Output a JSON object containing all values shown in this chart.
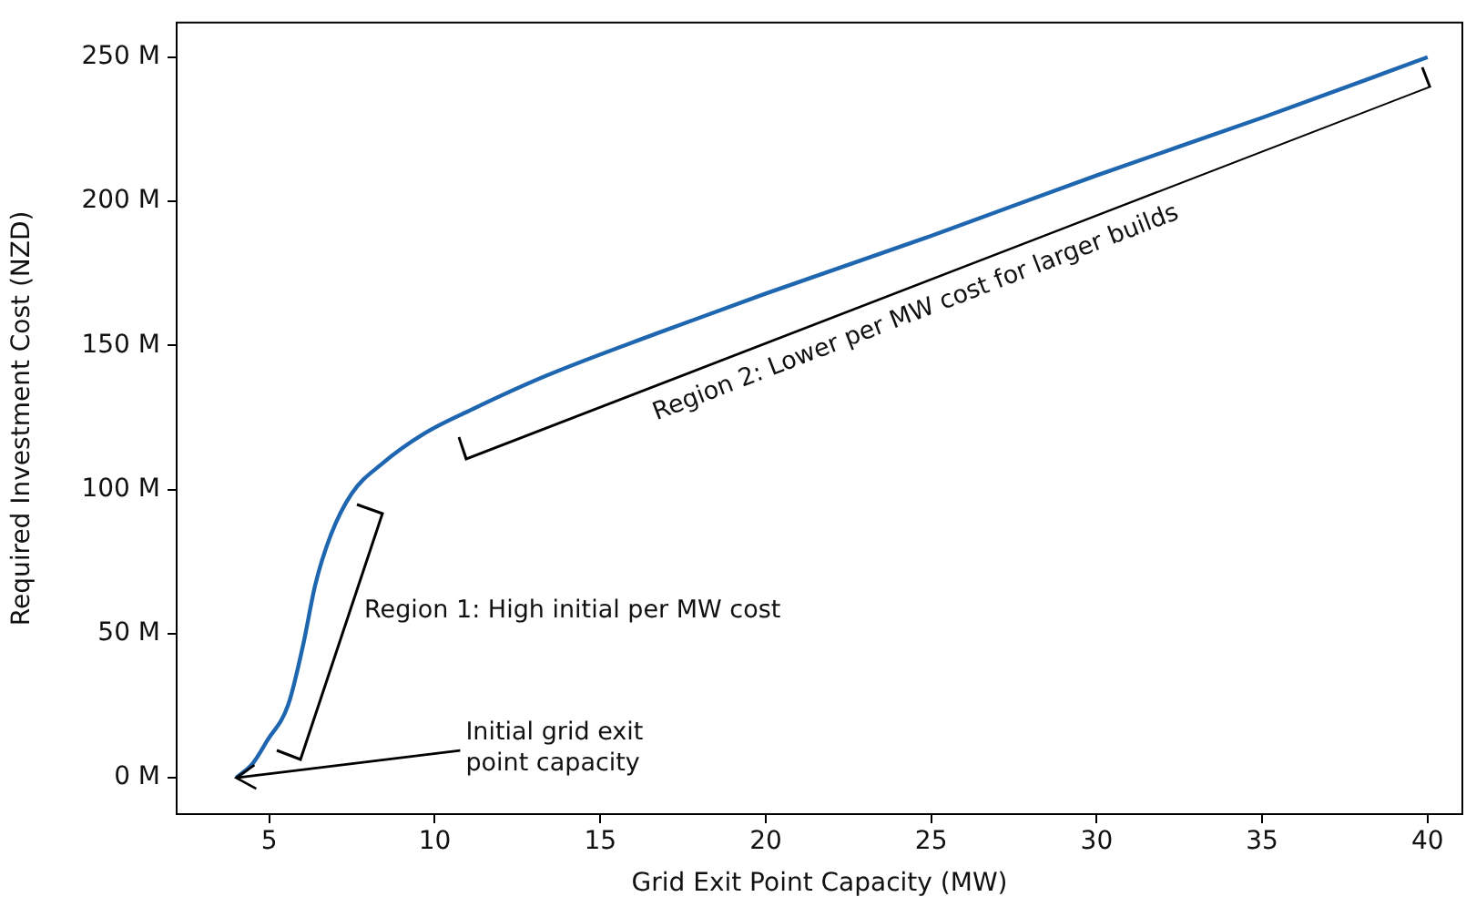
{
  "chart_data": {
    "type": "line",
    "xlabel": "Grid Exit Point Capacity (MW)",
    "ylabel": "Required Investment Cost (NZD)",
    "x": [
      4,
      4.5,
      4.93,
      5.57,
      6.02,
      6.39,
      6.85,
      7.49,
      8.41,
      9.69,
      11.16,
      13.37,
      16.67,
      20,
      25,
      30,
      35,
      40
    ],
    "series": [
      {
        "color": "#1f66b0",
        "values": [
          0,
          5,
          12.8,
          25.3,
          46,
          67,
          84,
          98.6,
          109,
          119.5,
          128,
          139.5,
          154,
          168,
          188,
          209,
          229,
          250
        ]
      }
    ],
    "xlim": [
      2.2,
      41.05
    ],
    "ylim": [
      -12.6,
      262
    ],
    "xticks": [
      5,
      10,
      15,
      20,
      25,
      30,
      35,
      40
    ],
    "yticks": [
      {
        "value": 0,
        "label": "0 M"
      },
      {
        "value": 50,
        "label": "50 M"
      },
      {
        "value": 100,
        "label": "100 M"
      },
      {
        "value": 150,
        "label": "150 M"
      },
      {
        "value": 200,
        "label": "200 M"
      },
      {
        "value": 250,
        "label": "250 M"
      }
    ],
    "annotations": [
      "Region 1: High initial per MW cost",
      "Region 2: Lower per MW cost for larger builds",
      {
        "text": "Initial grid exit\npoint capacity",
        "x": 4,
        "y": 0
      }
    ],
    "grid": false,
    "legend": false,
    "marker": "none",
    "line_style": "solid"
  }
}
